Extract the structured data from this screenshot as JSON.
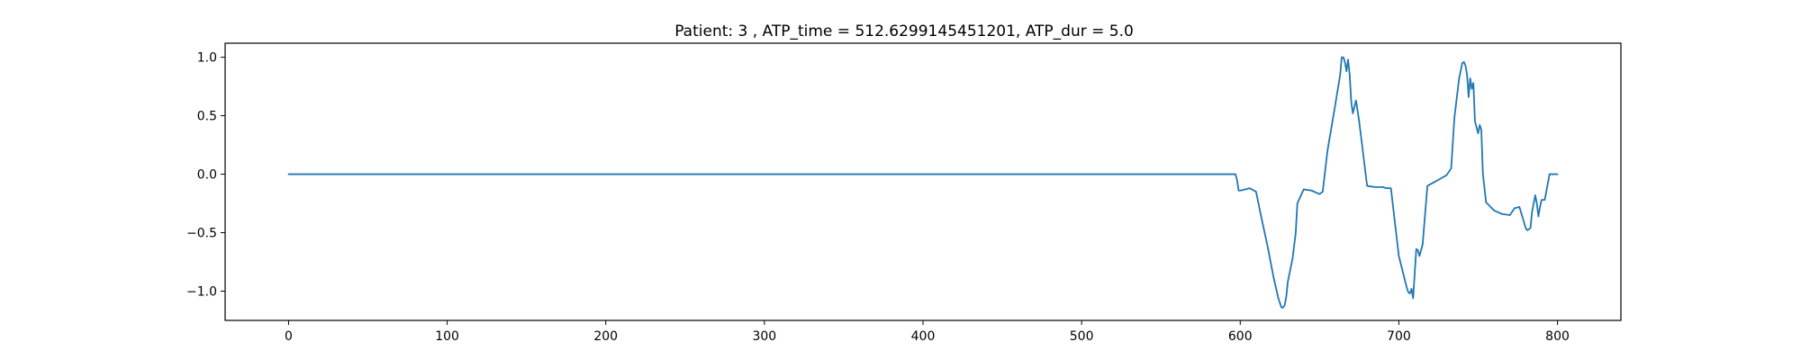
{
  "chart_data": {
    "type": "line",
    "title": "Patient: 3 , ATP_time = 512.6299145451201, ATP_dur = 5.0",
    "xlabel": "",
    "ylabel": "",
    "xlim": [
      -40,
      840
    ],
    "ylim": [
      -1.25,
      1.12
    ],
    "xticks": [
      0,
      100,
      200,
      300,
      400,
      500,
      600,
      700,
      800
    ],
    "xtick_labels": [
      "0",
      "100",
      "200",
      "300",
      "400",
      "500",
      "600",
      "700",
      "800"
    ],
    "yticks": [
      -1.0,
      -0.5,
      0.0,
      0.5,
      1.0
    ],
    "ytick_labels": [
      "−1.0",
      "−0.5",
      "0.0",
      "0.5",
      "1.0"
    ],
    "grid": false,
    "series": [
      {
        "color": "#1f77b4",
        "x": [
          0,
          100,
          200,
          300,
          400,
          500,
          597,
          598,
          599,
          600,
          603,
          606,
          610,
          613,
          617,
          621,
          624,
          626,
          627,
          628,
          629,
          630,
          633,
          635,
          636,
          640,
          645,
          650,
          652,
          655,
          660,
          663,
          664,
          665,
          666,
          667,
          668,
          669,
          670,
          671,
          673,
          675,
          680,
          685,
          690,
          692,
          695,
          700,
          705,
          706,
          707,
          708,
          709,
          710,
          711,
          712,
          713,
          715,
          718,
          722,
          726,
          730,
          733,
          735,
          738,
          740,
          741,
          742,
          743,
          744,
          745,
          746,
          747,
          748,
          749,
          750,
          751,
          752,
          753,
          755,
          760,
          765,
          770,
          773,
          776,
          778,
          780,
          781,
          783,
          784,
          786,
          787,
          788,
          789,
          790,
          792,
          795,
          800
        ],
        "values": [
          0,
          0,
          0,
          0,
          0,
          0,
          0,
          -0.05,
          -0.14,
          -0.14,
          -0.13,
          -0.12,
          -0.15,
          -0.35,
          -0.6,
          -0.88,
          -1.06,
          -1.14,
          -1.14,
          -1.12,
          -1.05,
          -0.92,
          -0.72,
          -0.5,
          -0.25,
          -0.13,
          -0.14,
          -0.17,
          -0.15,
          0.2,
          0.6,
          0.85,
          1.0,
          1.0,
          0.96,
          0.88,
          0.98,
          0.85,
          0.62,
          0.52,
          0.63,
          0.45,
          -0.1,
          -0.11,
          -0.11,
          -0.12,
          -0.12,
          -0.7,
          -0.97,
          -1.01,
          -1.02,
          -0.98,
          -1.06,
          -0.85,
          -0.64,
          -0.65,
          -0.7,
          -0.6,
          -0.1,
          -0.07,
          -0.04,
          -0.01,
          0.05,
          0.48,
          0.82,
          0.95,
          0.96,
          0.93,
          0.85,
          0.66,
          0.82,
          0.73,
          0.78,
          0.45,
          0.4,
          0.35,
          0.42,
          0.38,
          0.0,
          -0.24,
          -0.31,
          -0.34,
          -0.35,
          -0.29,
          -0.28,
          -0.37,
          -0.46,
          -0.48,
          -0.46,
          -0.32,
          -0.18,
          -0.25,
          -0.36,
          -0.28,
          -0.22,
          -0.22,
          0.0,
          0.0
        ]
      }
    ]
  }
}
